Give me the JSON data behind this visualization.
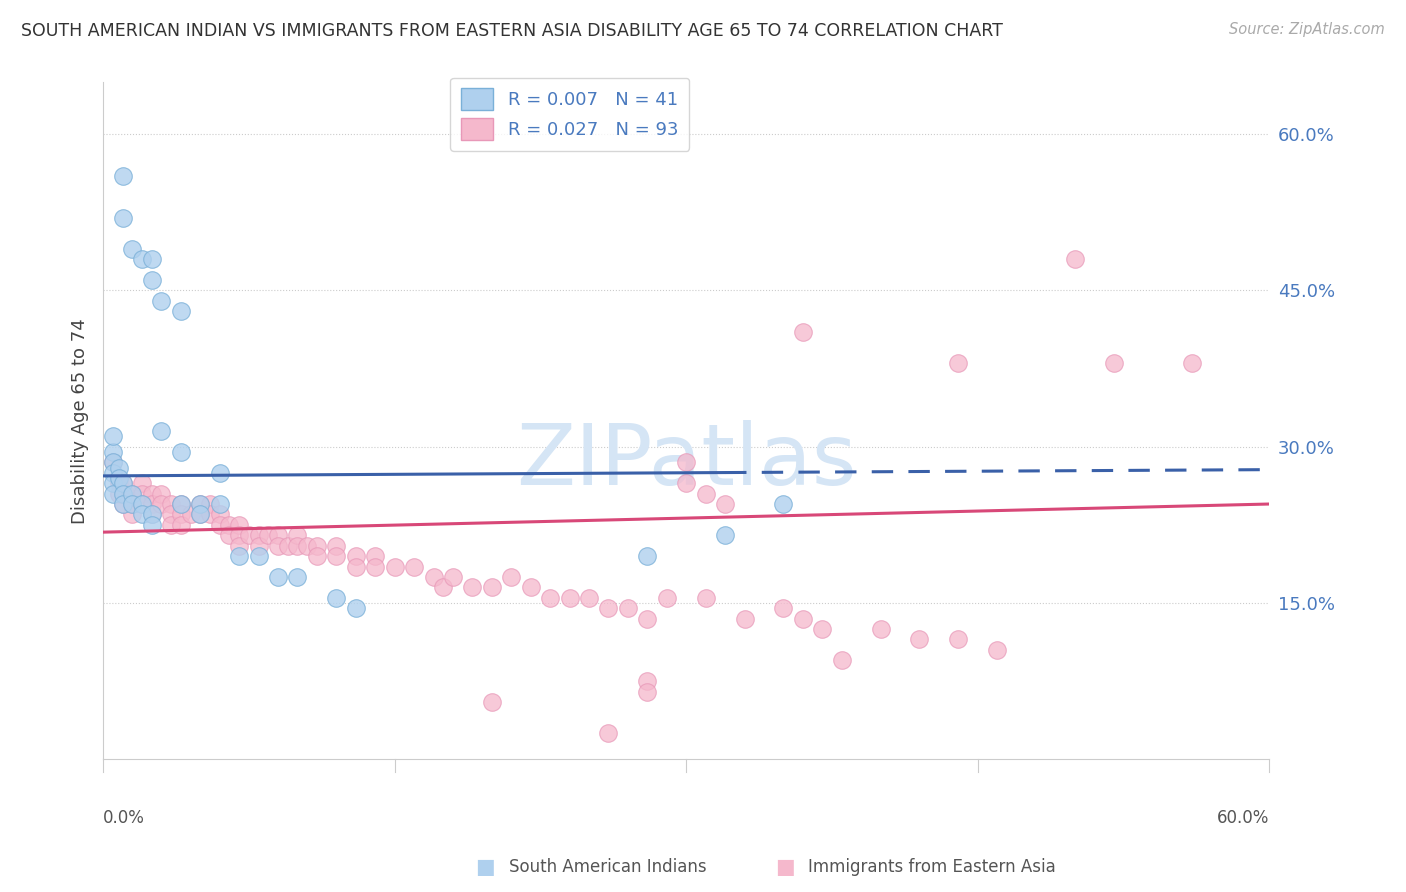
{
  "title": "SOUTH AMERICAN INDIAN VS IMMIGRANTS FROM EASTERN ASIA DISABILITY AGE 65 TO 74 CORRELATION CHART",
  "source": "Source: ZipAtlas.com",
  "ylabel": "Disability Age 65 to 74",
  "xlim": [
    0.0,
    0.6
  ],
  "ylim": [
    0.0,
    0.65
  ],
  "ytick_vals": [
    0.15,
    0.3,
    0.45,
    0.6
  ],
  "ytick_labels": [
    "15.0%",
    "30.0%",
    "45.0%",
    "60.0%"
  ],
  "legend1": "R = 0.007   N = 41",
  "legend2": "R = 0.027   N = 93",
  "blue_face": "#afd0ee",
  "blue_edge": "#7ab0d8",
  "pink_face": "#f5b8cc",
  "pink_edge": "#e898b8",
  "line_blue": "#3a60a8",
  "line_pink": "#d84878",
  "grid_color": "#cccccc",
  "tick_color": "#4a7abf",
  "title_color": "#333333",
  "source_color": "#aaaaaa",
  "watermark_color": "#d5e5f5",
  "bottom_label1": "South American Indians",
  "bottom_label2": "Immigrants from Eastern Asia",
  "blue_x": [
    0.01,
    0.01,
    0.015,
    0.02,
    0.025,
    0.025,
    0.03,
    0.04,
    0.005,
    0.005,
    0.005,
    0.005,
    0.005,
    0.008,
    0.008,
    0.01,
    0.01,
    0.01,
    0.015,
    0.015,
    0.02,
    0.02,
    0.025,
    0.025,
    0.03,
    0.04,
    0.04,
    0.05,
    0.05,
    0.06,
    0.06,
    0.07,
    0.08,
    0.09,
    0.1,
    0.12,
    0.13,
    0.28,
    0.32,
    0.005,
    0.35
  ],
  "blue_y": [
    0.56,
    0.52,
    0.49,
    0.48,
    0.48,
    0.46,
    0.44,
    0.43,
    0.295,
    0.285,
    0.275,
    0.265,
    0.255,
    0.28,
    0.27,
    0.265,
    0.255,
    0.245,
    0.255,
    0.245,
    0.245,
    0.235,
    0.235,
    0.225,
    0.315,
    0.295,
    0.245,
    0.245,
    0.235,
    0.275,
    0.245,
    0.195,
    0.195,
    0.175,
    0.175,
    0.155,
    0.145,
    0.195,
    0.215,
    0.31,
    0.245
  ],
  "pink_x": [
    0.005,
    0.008,
    0.008,
    0.01,
    0.01,
    0.01,
    0.012,
    0.015,
    0.015,
    0.015,
    0.02,
    0.02,
    0.02,
    0.025,
    0.025,
    0.025,
    0.03,
    0.03,
    0.035,
    0.035,
    0.035,
    0.04,
    0.04,
    0.04,
    0.045,
    0.05,
    0.05,
    0.055,
    0.055,
    0.06,
    0.06,
    0.065,
    0.065,
    0.07,
    0.07,
    0.07,
    0.075,
    0.08,
    0.08,
    0.085,
    0.09,
    0.09,
    0.095,
    0.1,
    0.1,
    0.105,
    0.11,
    0.11,
    0.12,
    0.12,
    0.13,
    0.13,
    0.14,
    0.14,
    0.15,
    0.16,
    0.17,
    0.175,
    0.18,
    0.19,
    0.2,
    0.21,
    0.22,
    0.23,
    0.24,
    0.25,
    0.26,
    0.27,
    0.28,
    0.29,
    0.31,
    0.32,
    0.33,
    0.35,
    0.36,
    0.37,
    0.4,
    0.42,
    0.44,
    0.46,
    0.3,
    0.3,
    0.31,
    0.36,
    0.44,
    0.5,
    0.52,
    0.56,
    0.38,
    0.28,
    0.28,
    0.2,
    0.26
  ],
  "pink_y": [
    0.285,
    0.265,
    0.255,
    0.265,
    0.255,
    0.245,
    0.255,
    0.255,
    0.245,
    0.235,
    0.265,
    0.255,
    0.245,
    0.255,
    0.245,
    0.235,
    0.255,
    0.245,
    0.245,
    0.235,
    0.225,
    0.245,
    0.235,
    0.225,
    0.235,
    0.245,
    0.235,
    0.245,
    0.235,
    0.235,
    0.225,
    0.225,
    0.215,
    0.225,
    0.215,
    0.205,
    0.215,
    0.215,
    0.205,
    0.215,
    0.215,
    0.205,
    0.205,
    0.215,
    0.205,
    0.205,
    0.205,
    0.195,
    0.205,
    0.195,
    0.195,
    0.185,
    0.195,
    0.185,
    0.185,
    0.185,
    0.175,
    0.165,
    0.175,
    0.165,
    0.165,
    0.175,
    0.165,
    0.155,
    0.155,
    0.155,
    0.145,
    0.145,
    0.135,
    0.155,
    0.155,
    0.245,
    0.135,
    0.145,
    0.135,
    0.125,
    0.125,
    0.115,
    0.115,
    0.105,
    0.285,
    0.265,
    0.255,
    0.41,
    0.38,
    0.48,
    0.38,
    0.38,
    0.095,
    0.075,
    0.065,
    0.055,
    0.025
  ],
  "blue_line_x0": 0.0,
  "blue_line_x_solid_end": 0.32,
  "blue_line_x1": 0.6,
  "blue_line_y0": 0.272,
  "blue_line_y1": 0.278,
  "pink_line_x0": 0.0,
  "pink_line_x1": 0.6,
  "pink_line_y0": 0.218,
  "pink_line_y1": 0.245
}
